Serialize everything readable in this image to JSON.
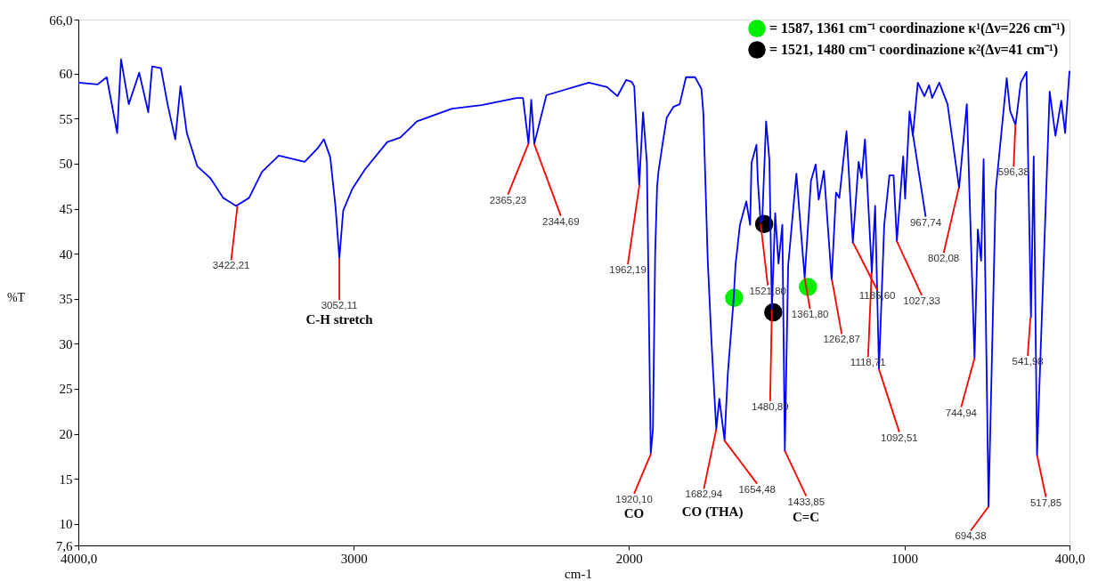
{
  "chart_data": {
    "type": "line",
    "xlabel": "cm-1",
    "ylabel": "%T",
    "xlim": [
      4000,
      400
    ],
    "ylim": [
      7.6,
      66
    ],
    "xticks": [
      {
        "value": 4000,
        "label": "4000,0"
      },
      3000,
      2000,
      1000,
      {
        "value": 400,
        "label": "400,0"
      }
    ],
    "yticks": [
      {
        "value": 7.6,
        "label": "7,6"
      },
      10,
      15,
      20,
      25,
      30,
      35,
      40,
      45,
      50,
      55,
      60,
      {
        "value": 66,
        "label": "66,0"
      }
    ],
    "grid": false,
    "legend": "top right",
    "series": [
      {
        "color": "#0000ff",
        "x": [
          4000,
          3930,
          3897,
          3859,
          3845,
          3817,
          3779,
          3746,
          3732,
          3700,
          3676,
          3648,
          3629,
          3606,
          3568,
          3521,
          3474,
          3427,
          3380,
          3333,
          3272,
          3178,
          3131,
          3108,
          3085,
          3066,
          3052,
          3038,
          3005,
          2958,
          2878,
          2831,
          2770,
          2643,
          2535,
          2408,
          2385,
          2365,
          2355,
          2344,
          2300,
          2146,
          2080,
          2042,
          2010,
          1991,
          1981,
          1963,
          1949,
          1935,
          1921,
          1913,
          1905,
          1898,
          1893,
          1877,
          1863,
          1839,
          1816,
          1793,
          1760,
          1737,
          1730,
          1714,
          1700,
          1683,
          1672,
          1653,
          1641,
          1620,
          1613,
          1597,
          1574,
          1560,
          1555,
          1537,
          1532,
          1522,
          1516,
          1502,
          1490,
          1481,
          1469,
          1457,
          1443,
          1434,
          1422,
          1392,
          1362,
          1339,
          1322,
          1311,
          1292,
          1264,
          1248,
          1236,
          1210,
          1187,
          1166,
          1155,
          1143,
          1118,
          1106,
          1092,
          1073,
          1054,
          1039,
          1027,
          1004,
          997,
          981,
          969,
          951,
          927,
          910,
          899,
          873,
          843,
          801,
          773,
          745,
          733,
          721,
          712,
          694,
          668,
          628,
          616,
          596,
          577,
          556,
          540,
          530,
          518,
          472,
          451,
          430,
          416,
          400
        ],
        "values": [
          59.0,
          58.8,
          59.6,
          53.4,
          61.6,
          56.6,
          60.1,
          55.7,
          60.8,
          60.6,
          56.6,
          52.7,
          58.6,
          53.4,
          49.7,
          48.4,
          46.2,
          45.3,
          46.2,
          49.1,
          50.9,
          50.2,
          51.7,
          52.7,
          50.7,
          45.2,
          39.5,
          44.8,
          47.2,
          49.4,
          52.4,
          52.9,
          54.7,
          56.1,
          56.5,
          57.3,
          57.3,
          52.2,
          57.1,
          52.2,
          57.6,
          59.0,
          58.5,
          57.5,
          59.3,
          59.1,
          58.6,
          47.6,
          55.7,
          50.1,
          17.8,
          20.5,
          40.0,
          47.4,
          49.1,
          52.4,
          55.1,
          56.3,
          56.6,
          59.6,
          59.6,
          58.3,
          55.7,
          39.3,
          30.0,
          20.5,
          23.9,
          19.3,
          26.7,
          34.9,
          38.8,
          43.2,
          45.8,
          43.2,
          50.1,
          52.1,
          48.1,
          43.5,
          43.8,
          54.7,
          50.4,
          33.8,
          44.5,
          38.9,
          43.2,
          18.1,
          38.6,
          48.9,
          37.3,
          48.1,
          49.9,
          46.0,
          49.2,
          37.1,
          46.8,
          46.2,
          53.6,
          41.2,
          50.2,
          48.4,
          52.7,
          37.9,
          45.3,
          27.2,
          43.2,
          48.7,
          48.7,
          41.4,
          50.8,
          46.1,
          55.8,
          53.1,
          59.0,
          57.5,
          58.7,
          57.3,
          59.0,
          56.6,
          47.3,
          56.6,
          28.4,
          42.7,
          39.2,
          50.5,
          11.9,
          47.0,
          59.5,
          55.9,
          54.3,
          59.0,
          60.2,
          32.9,
          50.8,
          17.6,
          58.0,
          53.1,
          57.0,
          53.4,
          60.3
        ]
      },
      {
        "type": "scatter",
        "name": "= 1587, 1361 cm⁻¹ coordinazione  κ¹(Δν=226 cm⁻¹)",
        "color": "#00ee00",
        "x": [
          1618,
          1350
        ],
        "values": [
          35.1,
          36.3
        ]
      },
      {
        "type": "scatter",
        "name": "= 1521, 1480 cm⁻¹ coordinazione  κ²(Δν=41 cm⁻¹)",
        "color": "#000000",
        "x": [
          1509,
          1476
        ],
        "values": [
          43.3,
          33.5
        ]
      }
    ],
    "annotations": [
      {
        "text": "3422,21",
        "x": 3422.21,
        "y": 45.3
      },
      {
        "text": "3052,11",
        "x": 3052.11,
        "y": 39.5
      },
      {
        "text": "2365,23",
        "x": 2365.23,
        "y": 52.2
      },
      {
        "text": "2344,69",
        "x": 2344.69,
        "y": 52.2
      },
      {
        "text": "1962,19",
        "x": 1962.19,
        "y": 47.6
      },
      {
        "text": "1920,10",
        "x": 1920.1,
        "y": 17.8
      },
      {
        "text": "1682,94",
        "x": 1682.94,
        "y": 20.5
      },
      {
        "text": "1654,48",
        "x": 1654.48,
        "y": 19.3
      },
      {
        "text": "1521,80",
        "x": 1521.8,
        "y": 43.3
      },
      {
        "text": "1480,89",
        "x": 1480.89,
        "y": 33.8
      },
      {
        "text": "1433,85",
        "x": 1433.85,
        "y": 18.1
      },
      {
        "text": "1361,80",
        "x": 1361.8,
        "y": 37.3
      },
      {
        "text": "1262,87",
        "x": 1262.87,
        "y": 37.1
      },
      {
        "text": "1185,60",
        "x": 1185.6,
        "y": 41.2
      },
      {
        "text": "1118,71",
        "x": 1118.71,
        "y": 37.9
      },
      {
        "text": "1092,51",
        "x": 1092.51,
        "y": 27.2
      },
      {
        "text": "1027,33",
        "x": 1027.33,
        "y": 41.4
      },
      {
        "text": "967,74",
        "x": 967.74,
        "y": 53.1
      },
      {
        "text": "802,08",
        "x": 802.08,
        "y": 47.3
      },
      {
        "text": "744,94",
        "x": 744.94,
        "y": 28.4
      },
      {
        "text": "694,38",
        "x": 694.38,
        "y": 11.9
      },
      {
        "text": "596,38",
        "x": 596.38,
        "y": 54.3
      },
      {
        "text": "541,98",
        "x": 541.98,
        "y": 32.9
      },
      {
        "text": "517,85",
        "x": 517.85,
        "y": 17.6
      },
      "C-H stretch",
      "CO",
      "CO (THA)",
      "C=C"
    ]
  }
}
